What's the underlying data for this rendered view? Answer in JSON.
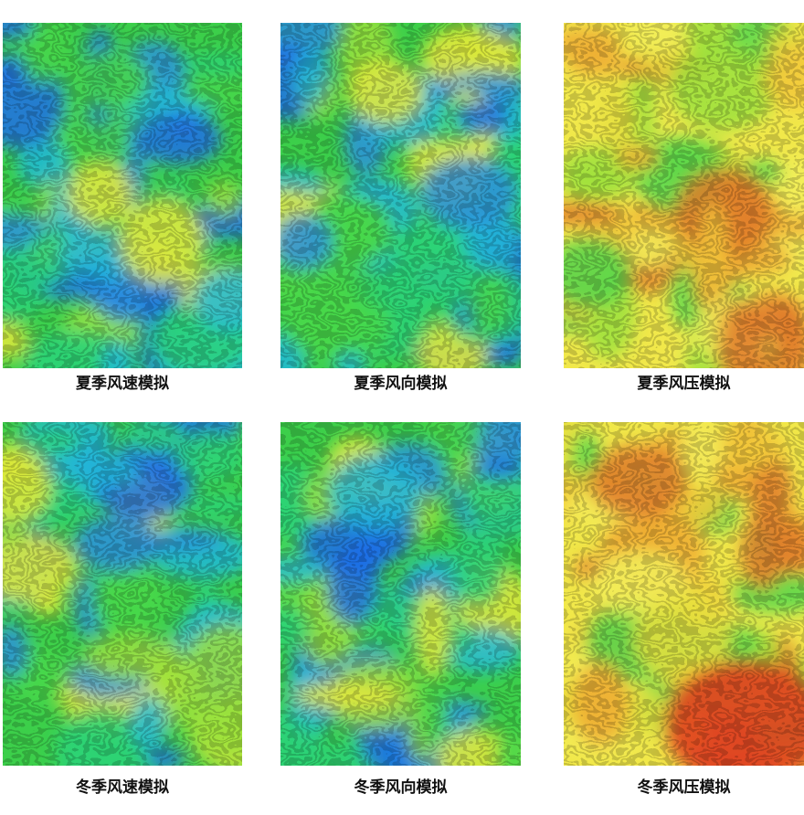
{
  "panels": [
    {
      "caption": "夏季风速模拟"
    },
    {
      "caption": "夏季风向模拟"
    },
    {
      "caption": "夏季风压模拟"
    },
    {
      "caption": "冬季风速模拟"
    },
    {
      "caption": "冬季风向模拟"
    },
    {
      "caption": "冬季风压模拟"
    }
  ]
}
